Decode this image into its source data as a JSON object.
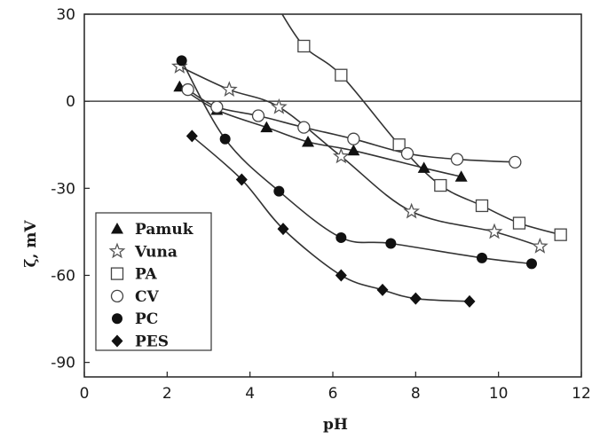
{
  "chart_data": {
    "type": "line",
    "xlabel": "pH",
    "ylabel": "ζ, mV",
    "xlim": [
      0,
      12
    ],
    "ylim": [
      -95,
      30
    ],
    "xticks": [
      0,
      2,
      4,
      6,
      8,
      10,
      12
    ],
    "yticks": [
      30,
      0,
      -30,
      -60,
      -90
    ],
    "xtick_labels": [
      "0",
      "2",
      "4",
      "6",
      "8",
      "10",
      "12"
    ],
    "ytick_labels": [
      "30",
      "0",
      "-30",
      "-60",
      "-90"
    ],
    "zero_line": true,
    "grid": false,
    "legend_position": "lower-left",
    "series": [
      {
        "name": "Pamuk",
        "marker": "triangle",
        "x": [
          2.3,
          3.2,
          4.4,
          5.4,
          6.5,
          8.2,
          9.1
        ],
        "y": [
          5,
          -3,
          -9,
          -14,
          -17,
          -23,
          -26
        ]
      },
      {
        "name": "Vuna",
        "marker": "star",
        "x": [
          2.3,
          3.5,
          4.7,
          6.2,
          7.9,
          9.9,
          11.0
        ],
        "y": [
          12,
          4,
          -2,
          -19,
          -38,
          -45,
          -50
        ]
      },
      {
        "name": "PA",
        "marker": "square",
        "x": [
          5.3,
          6.2,
          7.6,
          8.6,
          9.6,
          10.5,
          11.5
        ],
        "y": [
          19,
          9,
          -15,
          -29,
          -36,
          -42,
          -46
        ]
      },
      {
        "name": "CV",
        "marker": "circle-open",
        "x": [
          2.5,
          3.2,
          4.2,
          5.3,
          6.5,
          7.8,
          9.0,
          10.4
        ],
        "y": [
          4,
          -2,
          -5,
          -9,
          -13,
          -18,
          -20,
          -21
        ]
      },
      {
        "name": "PC",
        "marker": "circle",
        "x": [
          2.35,
          3.4,
          4.7,
          6.2,
          7.4,
          9.6,
          10.8
        ],
        "y": [
          14,
          -13,
          -31,
          -47,
          -49,
          -54,
          -56
        ]
      },
      {
        "name": "PES",
        "marker": "diamond",
        "x": [
          2.6,
          3.8,
          4.8,
          6.2,
          7.2,
          8.0,
          9.3
        ],
        "y": [
          -12,
          -27,
          -44,
          -60,
          -65,
          -68,
          -69
        ]
      }
    ]
  }
}
